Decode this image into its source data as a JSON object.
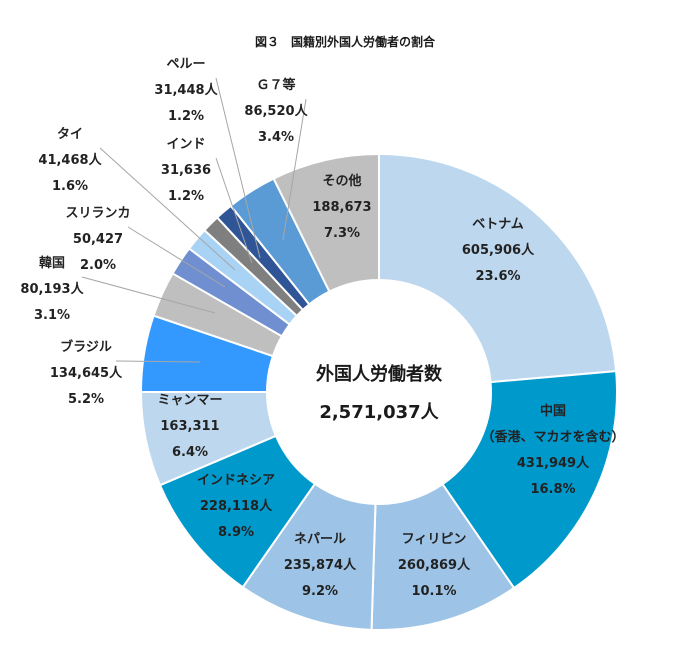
{
  "chart_data": {
    "type": "pie",
    "variant": "donut",
    "title": "図３　国籍別外国人労働者の割合",
    "center_label": "外国人労働者数",
    "center_value": "2,571,037人",
    "slices": [
      {
        "name": "ベトナム",
        "name2": "",
        "count": "605,906人",
        "pct": "23.6%",
        "value": 23.6,
        "color": "#bdd7ee",
        "text_color": "#1a1a1a"
      },
      {
        "name": "中国",
        "name2": "（香港、マカオを含む）",
        "count": "431,949人",
        "pct": "16.8%",
        "value": 16.8,
        "color": "#0099cc",
        "text_color": "#1a1a1a"
      },
      {
        "name": "フィリピン",
        "name2": "",
        "count": "260,869人",
        "pct": "10.1%",
        "value": 10.1,
        "color": "#9dc3e6",
        "text_color": "#1a1a1a"
      },
      {
        "name": "ネパール",
        "name2": "",
        "count": "235,874人",
        "pct": "9.2%",
        "value": 9.2,
        "color": "#9dc3e6",
        "text_color": "#1a1a1a"
      },
      {
        "name": "インドネシア",
        "name2": "",
        "count": "228,118人",
        "pct": "8.9%",
        "value": 8.9,
        "color": "#0099cc",
        "text_color": "#1a1a1a"
      },
      {
        "name": "ミャンマー",
        "name2": "",
        "count": "163,311",
        "pct": "6.4%",
        "value": 6.4,
        "color": "#bdd7ee",
        "text_color": "#1a1a1a"
      },
      {
        "name": "ブラジル",
        "name2": "",
        "count": "134,645人",
        "pct": "5.2%",
        "value": 5.2,
        "color": "#3399ff",
        "text_color": "#1a1a1a"
      },
      {
        "name": "韓国",
        "name2": "",
        "count": "80,193人",
        "pct": "3.1%",
        "value": 3.1,
        "color": "#bfbfbf",
        "text_color": "#1a1a1a"
      },
      {
        "name": "スリランカ",
        "name2": "",
        "count": "50,427",
        "pct": "2.0%",
        "value": 2.0,
        "color": "#6f8fd0",
        "text_color": "#1a1a1a"
      },
      {
        "name": "タイ",
        "name2": "",
        "count": "41,468人",
        "pct": "1.6%",
        "value": 1.6,
        "color": "#a9d3f5",
        "text_color": "#1a1a1a"
      },
      {
        "name": "インド",
        "name2": "",
        "count": "31,636",
        "pct": "1.2%",
        "value": 1.2,
        "color": "#7f7f7f",
        "text_color": "#1a1a1a"
      },
      {
        "name": "ペルー",
        "name2": "",
        "count": "31,448人",
        "pct": "1.2%",
        "value": 1.2,
        "color": "#2f5597",
        "text_color": "#1a1a1a"
      },
      {
        "name": "Ｇ７等",
        "name2": "",
        "count": "86,520人",
        "pct": "3.4%",
        "value": 3.4,
        "color": "#5b9bd5",
        "text_color": "#1a1a1a"
      },
      {
        "name": "その他",
        "name2": "",
        "count": "188,673",
        "pct": "7.3%",
        "value": 7.3,
        "color": "#bfbfbf",
        "text_color": "#1a1a1a"
      }
    ]
  }
}
